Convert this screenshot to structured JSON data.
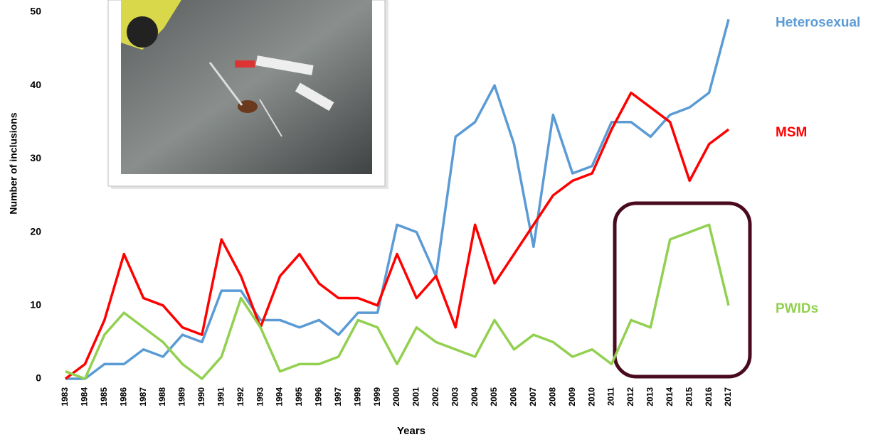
{
  "chart_data": {
    "type": "line",
    "x_label": "Years",
    "y_label": "Number of inclusions",
    "x": [
      1983,
      1984,
      1985,
      1986,
      1987,
      1988,
      1989,
      1990,
      1991,
      1992,
      1993,
      1994,
      1995,
      1996,
      1997,
      1998,
      1999,
      2000,
      2001,
      2002,
      2003,
      2004,
      2005,
      2006,
      2007,
      2008,
      2009,
      2010,
      2011,
      2012,
      2013,
      2014,
      2015,
      2016,
      2017
    ],
    "ylim": [
      0,
      50
    ],
    "yticks": [
      0,
      10,
      20,
      30,
      40,
      50
    ],
    "grid": false,
    "series": [
      {
        "name": "Heterosexual",
        "color": "#5b9bd5",
        "values": [
          0,
          0,
          2,
          2,
          4,
          3,
          6,
          5,
          12,
          12,
          8,
          8,
          7,
          8,
          6,
          9,
          9,
          21,
          20,
          14,
          33,
          35,
          40,
          32,
          18,
          36,
          28,
          29,
          35,
          35,
          33,
          36,
          37,
          39,
          49
        ]
      },
      {
        "name": "MSM",
        "color": "#ff0000",
        "values": [
          0,
          2,
          8,
          17,
          11,
          10,
          7,
          6,
          19,
          14,
          7,
          14,
          17,
          13,
          11,
          11,
          10,
          17,
          11,
          14,
          7,
          21,
          13,
          17,
          21,
          25,
          27,
          28,
          34,
          39,
          37,
          35,
          27,
          32,
          34
        ]
      },
      {
        "name": "PWIDs",
        "color": "#92d050",
        "values": [
          1,
          0,
          6,
          9,
          7,
          5,
          2,
          0,
          3,
          11,
          7,
          1,
          2,
          2,
          3,
          8,
          7,
          2,
          7,
          5,
          4,
          3,
          8,
          4,
          6,
          5,
          3,
          4,
          2,
          8,
          7,
          19,
          20,
          21,
          10
        ]
      }
    ]
  }
}
